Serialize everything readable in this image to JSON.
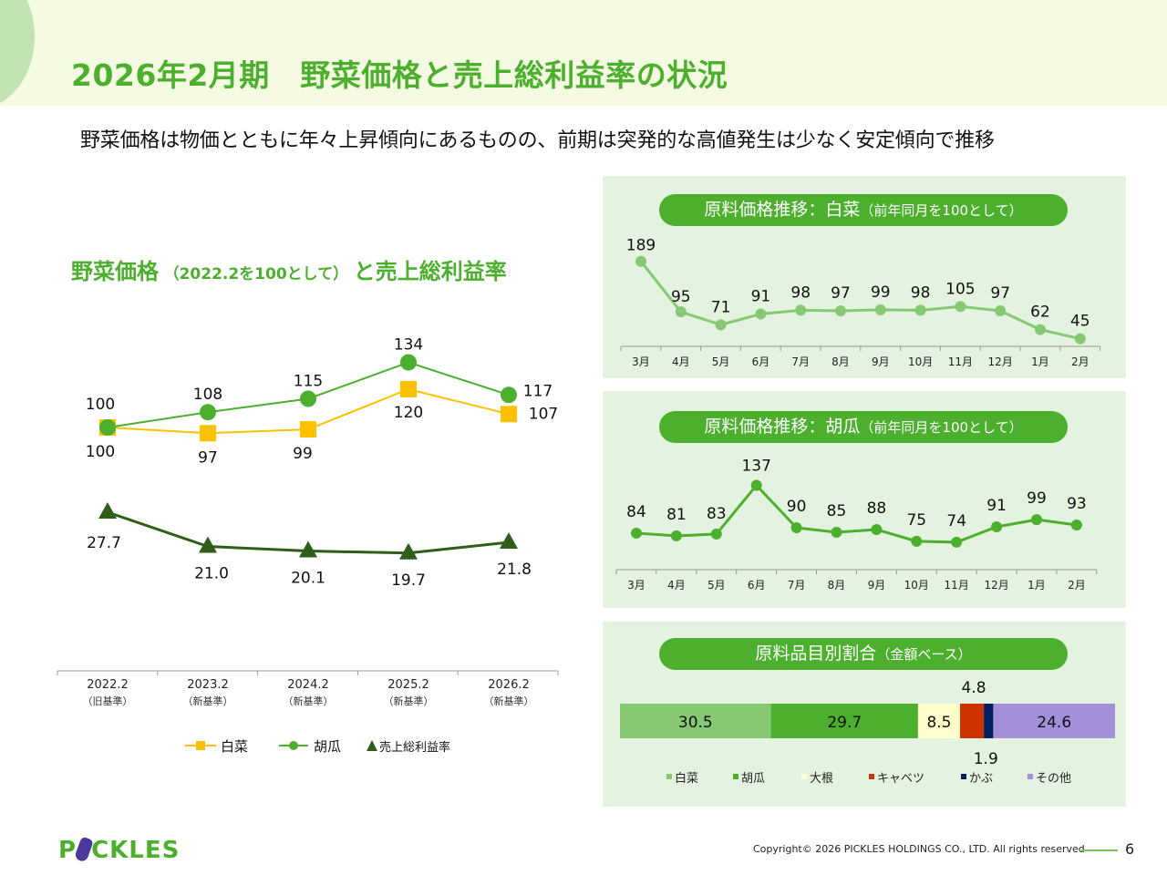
{
  "header": {
    "title": "2026年2月期　野菜価格と売上総利益率の状況",
    "subtitle": "野菜価格は物価とともに年々上昇傾向にあるものの、前期は突発的な高値発生は少なく安定傾向で推移"
  },
  "left_chart_title": {
    "main": "野菜価格",
    "note": "（2022.2を100として）",
    "suffix": "と売上総利益率"
  },
  "colors": {
    "brand_green": "#4caf2e",
    "hakusai": "#ffc000",
    "kyuri": "#4caf2e",
    "gross_margin": "#2e5e1a",
    "panel_bg": "#e4f3df",
    "light_green": "#86c873"
  },
  "chart_data": [
    {
      "id": "main",
      "type": "line",
      "title": "野菜価格（2022.2を100として）と売上総利益率",
      "categories": [
        "2022.2",
        "2023.2",
        "2024.2",
        "2025.2",
        "2026.2"
      ],
      "category_notes": [
        "（旧基準）",
        "（新基準）",
        "（新基準）",
        "（新基準）",
        "（新基準）"
      ],
      "series": [
        {
          "name": "白菜",
          "marker": "square",
          "color": "#ffc000",
          "values": [
            100,
            97,
            99,
            120,
            107
          ]
        },
        {
          "name": "胡瓜",
          "marker": "circle",
          "color": "#4caf2e",
          "values": [
            100,
            108,
            115,
            134,
            117
          ]
        },
        {
          "name": "売上総利益率",
          "marker": "triangle",
          "color": "#2e5e1a",
          "values": [
            27.7,
            21.0,
            20.1,
            19.7,
            21.8
          ],
          "labels": [
            "27.7",
            "21.0",
            "20.1",
            "19.7",
            "21.8"
          ]
        }
      ],
      "legend": [
        "白菜",
        "胡瓜",
        "▲売上総利益率"
      ],
      "legend_position": "bottom",
      "grid": false
    },
    {
      "id": "hakusai",
      "type": "line",
      "title": "原料価格推移：白菜",
      "title_note": "（前年同月を100として）",
      "categories": [
        "3月",
        "4月",
        "5月",
        "6月",
        "7月",
        "8月",
        "9月",
        "10月",
        "11月",
        "12月",
        "1月",
        "2月"
      ],
      "values": [
        189,
        95,
        71,
        91,
        98,
        97,
        99,
        98,
        105,
        97,
        62,
        45
      ],
      "color": "#86c873",
      "grid": false
    },
    {
      "id": "kyuri",
      "type": "line",
      "title": "原料価格推移：胡瓜",
      "title_note": "（前年同月を100として）",
      "categories": [
        "3月",
        "4月",
        "5月",
        "6月",
        "7月",
        "8月",
        "9月",
        "10月",
        "11月",
        "12月",
        "1月",
        "2月"
      ],
      "values": [
        84,
        81,
        83,
        137,
        90,
        85,
        88,
        75,
        74,
        91,
        99,
        93
      ],
      "color": "#4caf2e",
      "grid": false
    },
    {
      "id": "share",
      "type": "bar",
      "orientation": "horizontal-stacked",
      "title": "原料品目別割合",
      "title_note": "（金額ベース）",
      "categories": [
        "白菜",
        "胡瓜",
        "大根",
        "キャベツ",
        "かぶ",
        "その他"
      ],
      "values": [
        30.5,
        29.7,
        8.5,
        4.8,
        1.9,
        24.6
      ],
      "colors": [
        "#86c873",
        "#4caf2e",
        "#ffffcc",
        "#cc3300",
        "#002060",
        "#a48fd9"
      ],
      "legend_position": "bottom"
    }
  ],
  "footer": {
    "logo_pre": "P",
    "logo_post": "CKLES",
    "copyright": "Copyright© 2026 PICKLES HOLDINGS CO., LTD. All rights reserved",
    "page_number": "6"
  }
}
